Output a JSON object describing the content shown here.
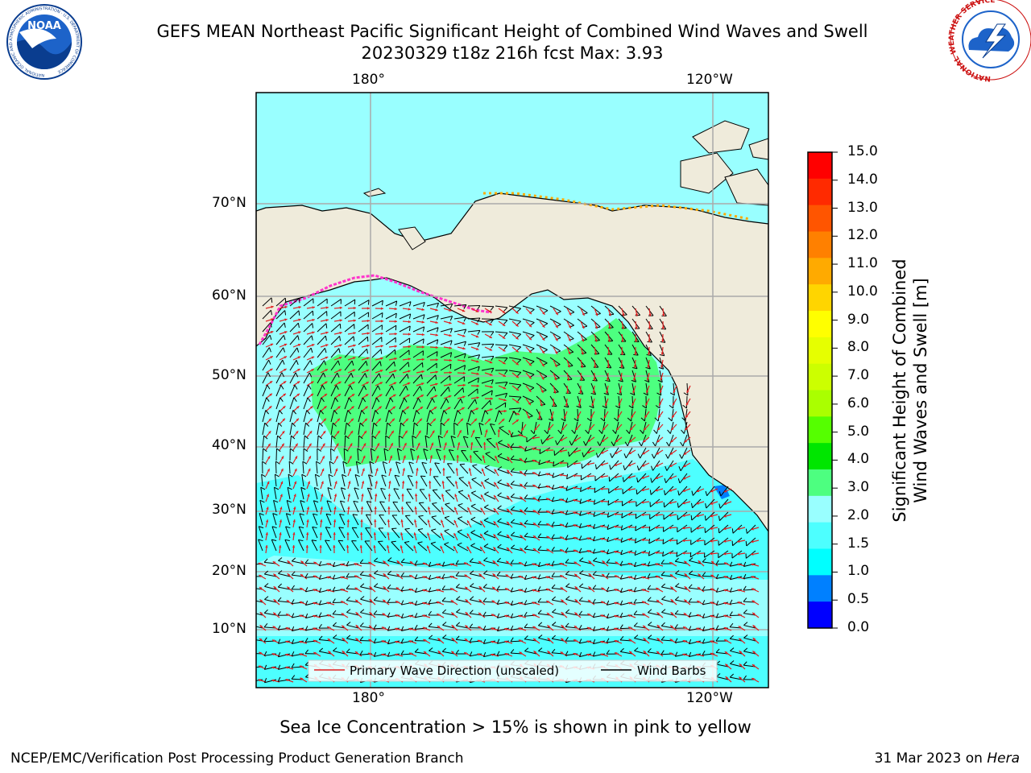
{
  "header": {
    "title_line1": "GEFS MEAN Northeast Pacific Significant Height of Combined Wind Waves and Swell",
    "title_line2": "20230329 t18z 216h fcst   Max: 3.93"
  },
  "logos": {
    "noaa_text": "NOAA",
    "noaa_ring_text": "NATIONAL OCEANIC AND ATMOSPHERIC ADMINISTRATION · U.S. DEPARTMENT OF COMMERCE",
    "nws_ring_text": "NATIONAL WEATHER SERVICE"
  },
  "map": {
    "top_lon_labels": [
      "180°",
      "120°W"
    ],
    "bottom_lon_labels": [
      "180°",
      "120°W"
    ],
    "lat_labels": [
      "70°N",
      "60°N",
      "50°N",
      "40°N",
      "30°N",
      "20°N",
      "10°N"
    ],
    "legend": {
      "wave_direction": "Primary Wave Direction (unscaled)",
      "wind_barbs": "Wind Barbs"
    },
    "colors": {
      "land": "#efebdb",
      "ocean_2_3": "#99ffff",
      "ocean_1_5_2": "#4dffff",
      "wave_3_4": "#4dff80",
      "arrow": "#e02020",
      "ice": "#ff33cc"
    }
  },
  "colorbar": {
    "label_line1": "Significant Height of Combined",
    "label_line2": "Wind Waves and Swell [m]",
    "ticks": [
      "15.0",
      "14.0",
      "13.0",
      "12.0",
      "11.0",
      "10.0",
      "9.0",
      "8.0",
      "7.0",
      "6.0",
      "5.0",
      "4.0",
      "3.0",
      "2.0",
      "1.5",
      "1.0",
      "0.5",
      "0.0"
    ],
    "colors_top_to_bottom": [
      "#ff0000",
      "#ff2a00",
      "#ff5500",
      "#ff8000",
      "#ffaa00",
      "#ffd500",
      "#ffff00",
      "#e6ff00",
      "#ccff00",
      "#aaff00",
      "#55ff00",
      "#00e600",
      "#4dff80",
      "#99ffff",
      "#4dffff",
      "#00ffff",
      "#0080ff",
      "#0000ff"
    ]
  },
  "footer": {
    "ice_note": "Sea Ice Concentration > 15% is shown in pink to yellow",
    "branch": "NCEP/EMC/Verification Post Processing Product Generation Branch",
    "date": "31 Mar 2023 on ",
    "machine": "Hera"
  }
}
